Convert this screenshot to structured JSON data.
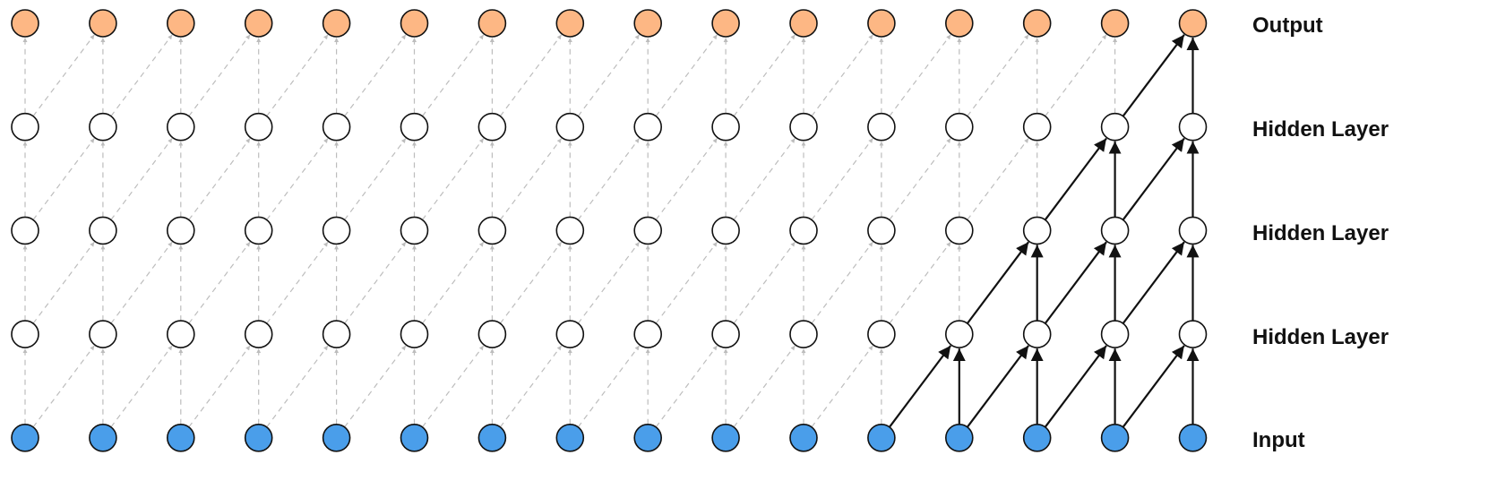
{
  "layers": [
    {
      "label": "Output",
      "kind": "output"
    },
    {
      "label": "Hidden Layer",
      "kind": "hidden"
    },
    {
      "label": "Hidden Layer",
      "kind": "hidden"
    },
    {
      "label": "Hidden Layer",
      "kind": "hidden"
    },
    {
      "label": "Input",
      "kind": "input"
    }
  ],
  "columns": 16,
  "receptive_field_output_column": 16,
  "colors": {
    "input": "#4a9eea",
    "hidden": "#ffffff",
    "output": "#fdb784",
    "edge_strong": "#111111",
    "edge_faint": "#bdbdbd"
  }
}
